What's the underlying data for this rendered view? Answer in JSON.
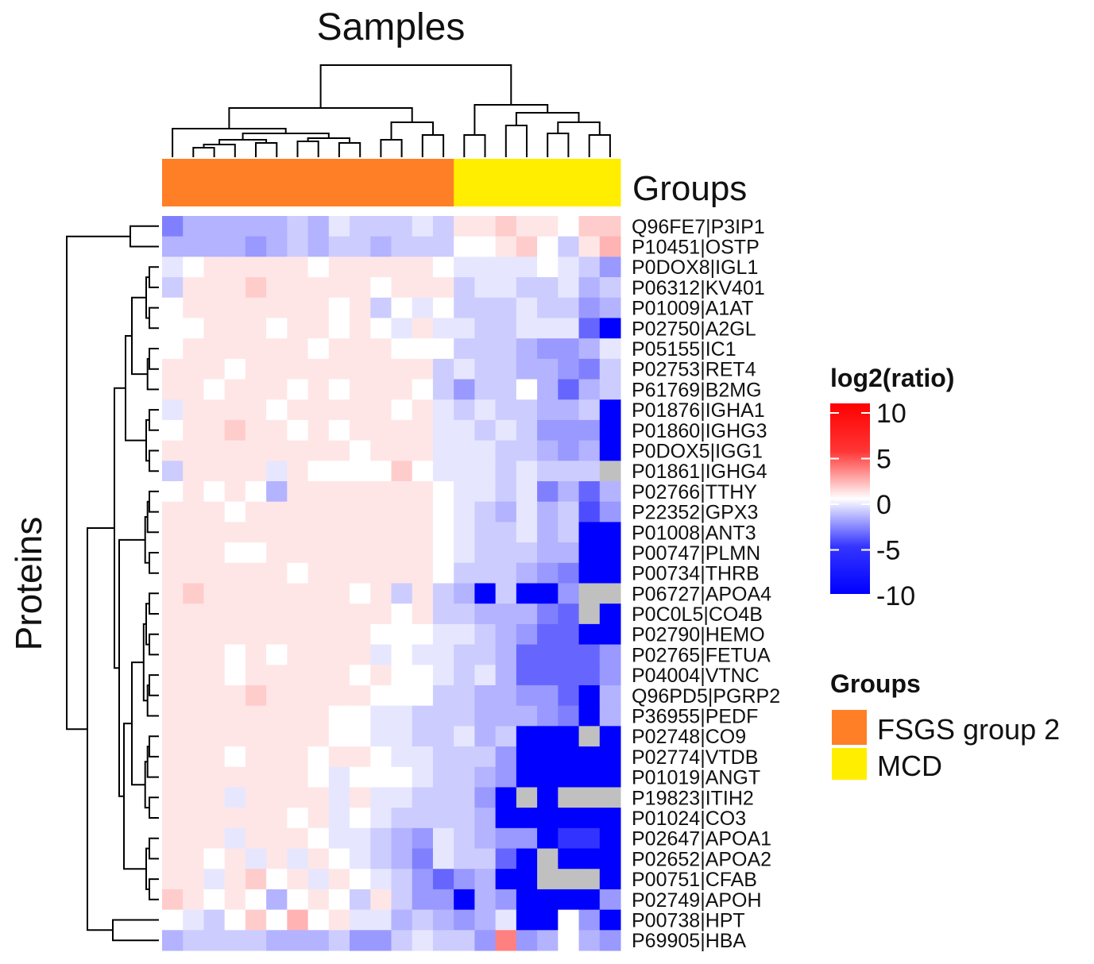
{
  "chart_data": {
    "type": "heatmap",
    "title": "Samples",
    "xlabel": "Samples",
    "ylabel": "Proteins",
    "annotation_label": "Groups",
    "rows": [
      "Q96FE7|P3IP1",
      "P10451|OSTP",
      "P0DOX8|IGL1",
      "P06312|KV401",
      "P01009|A1AT",
      "P02750|A2GL",
      "P05155|IC1",
      "P02753|RET4",
      "P61769|B2MG",
      "P01876|IGHA1",
      "P01860|IGHG3",
      "P0DOX5|IGG1",
      "P01861|IGHG4",
      "P02766|TTHY",
      "P22352|GPX3",
      "P01008|ANT3",
      "P00747|PLMN",
      "P00734|THRB",
      "P06727|APOA4",
      "P0C0L5|CO4B",
      "P02790|HEMO",
      "P02765|FETUA",
      "P04004|VTNC",
      "Q96PD5|PGRP2",
      "P36955|PEDF",
      "P02748|CO9",
      "P02774|VTDB",
      "P01019|ANGT",
      "P19823|ITIH2",
      "P01024|CO3",
      "P02647|APOA1",
      "P02652|APOA2",
      "P00751|CFAB",
      "P02749|APOH",
      "P00738|HPT",
      "P69905|HBA"
    ],
    "sample_groups": [
      "FSGS group 2",
      "FSGS group 2",
      "FSGS group 2",
      "FSGS group 2",
      "FSGS group 2",
      "FSGS group 2",
      "FSGS group 2",
      "FSGS group 2",
      "FSGS group 2",
      "FSGS group 2",
      "FSGS group 2",
      "FSGS group 2",
      "FSGS group 2",
      "FSGS group 2",
      "MCD",
      "MCD",
      "MCD",
      "MCD",
      "MCD",
      "MCD",
      "MCD",
      "MCD"
    ],
    "values": [
      [
        -5,
        -3,
        -3,
        -3,
        -3,
        -3,
        -2,
        -3,
        -1,
        -2,
        -2,
        -2,
        -1,
        -2,
        1,
        1,
        2,
        1,
        1,
        0,
        2,
        2
      ],
      [
        -3,
        -3,
        -3,
        -3,
        -4,
        -3,
        -2,
        -3,
        -2,
        -2,
        -3,
        -2,
        -2,
        -2,
        0,
        0,
        1,
        2,
        0,
        -2,
        1,
        3
      ],
      [
        -1,
        0,
        1,
        1,
        1,
        1,
        1,
        0,
        1,
        1,
        1,
        1,
        1,
        0,
        -1,
        -1,
        -1,
        -1,
        0,
        -1,
        -2,
        -4
      ],
      [
        -2,
        1,
        1,
        1,
        2,
        1,
        1,
        1,
        1,
        1,
        0,
        1,
        1,
        1,
        -2,
        -1,
        -1,
        -2,
        -2,
        -1,
        -3,
        -2
      ],
      [
        0,
        1,
        1,
        1,
        1,
        1,
        1,
        1,
        0,
        1,
        -2,
        0,
        -1,
        0,
        -2,
        -2,
        -2,
        -1,
        -2,
        -2,
        -4,
        -3
      ],
      [
        0,
        0,
        1,
        1,
        1,
        0,
        1,
        1,
        0,
        1,
        0,
        -1,
        1,
        -1,
        -1,
        -2,
        -2,
        -1,
        -1,
        -1,
        -6,
        -10
      ],
      [
        0,
        1,
        1,
        1,
        1,
        1,
        1,
        0,
        1,
        1,
        1,
        0,
        0,
        0,
        -2,
        -2,
        -2,
        -3,
        -4,
        -4,
        -3,
        -1
      ],
      [
        1,
        1,
        1,
        0,
        1,
        1,
        1,
        1,
        1,
        1,
        1,
        1,
        1,
        -2,
        -1,
        -2,
        -2,
        -3,
        -3,
        -4,
        -5,
        -2
      ],
      [
        1,
        1,
        0,
        1,
        1,
        1,
        0,
        1,
        0,
        1,
        1,
        1,
        0,
        -2,
        -4,
        -2,
        -2,
        0,
        -3,
        -6,
        -3,
        -2
      ],
      [
        -1,
        1,
        1,
        1,
        1,
        0,
        1,
        1,
        1,
        1,
        1,
        0,
        1,
        -1,
        -2,
        -1,
        -2,
        -2,
        -3,
        -3,
        -2,
        -10
      ],
      [
        0,
        1,
        1,
        2,
        1,
        1,
        0,
        1,
        0,
        1,
        1,
        1,
        1,
        -1,
        -1,
        -2,
        -1,
        -2,
        -4,
        -4,
        -4,
        -10
      ],
      [
        1,
        1,
        1,
        1,
        1,
        1,
        1,
        1,
        1,
        0,
        1,
        1,
        1,
        -1,
        -1,
        -1,
        -2,
        -2,
        -3,
        -4,
        -3,
        -10
      ],
      [
        -2,
        1,
        1,
        1,
        1,
        -1,
        1,
        0,
        0,
        0,
        0,
        2,
        0,
        -1,
        -1,
        -1,
        -2,
        -1,
        -2,
        -2,
        -2,
        "NA"
      ],
      [
        0,
        1,
        0,
        1,
        0,
        -3,
        1,
        1,
        1,
        1,
        1,
        1,
        1,
        0,
        -1,
        -1,
        -2,
        -1,
        -5,
        -3,
        -6,
        -3
      ],
      [
        1,
        1,
        1,
        0,
        1,
        1,
        1,
        1,
        1,
        1,
        1,
        1,
        1,
        0,
        -1,
        -2,
        -3,
        -1,
        -3,
        -2,
        -7,
        -4
      ],
      [
        1,
        1,
        1,
        1,
        1,
        1,
        1,
        1,
        1,
        1,
        1,
        1,
        1,
        0,
        -1,
        -2,
        -2,
        -1,
        -3,
        -2,
        -10,
        -10
      ],
      [
        1,
        1,
        1,
        0,
        0,
        1,
        1,
        1,
        1,
        1,
        1,
        1,
        1,
        0,
        -1,
        -2,
        -2,
        -2,
        -3,
        -3,
        -10,
        -10
      ],
      [
        1,
        1,
        1,
        1,
        1,
        1,
        0,
        1,
        1,
        1,
        1,
        1,
        1,
        0,
        -2,
        -2,
        -2,
        -3,
        -4,
        -5,
        -10,
        -10
      ],
      [
        1,
        2,
        1,
        1,
        1,
        1,
        1,
        1,
        1,
        0,
        1,
        -2,
        1,
        -2,
        -3,
        -10,
        -2,
        -10,
        -10,
        -4,
        "NA",
        "NA"
      ],
      [
        1,
        1,
        1,
        1,
        1,
        1,
        1,
        1,
        1,
        1,
        1,
        0,
        1,
        -2,
        -2,
        -3,
        -3,
        -3,
        -5,
        -6,
        "NA",
        -10
      ],
      [
        1,
        1,
        1,
        1,
        1,
        1,
        1,
        1,
        1,
        1,
        0,
        0,
        0,
        -1,
        -1,
        -2,
        -3,
        -4,
        -6,
        -6,
        -10,
        -10
      ],
      [
        1,
        1,
        1,
        0,
        1,
        0,
        1,
        1,
        1,
        1,
        -1,
        0,
        -1,
        -1,
        -2,
        -2,
        -3,
        -6,
        -6,
        -6,
        -6,
        -4
      ],
      [
        1,
        1,
        1,
        0,
        1,
        1,
        1,
        1,
        1,
        0,
        1,
        0,
        0,
        -1,
        -2,
        -1,
        -3,
        -6,
        -6,
        -6,
        -6,
        -4
      ],
      [
        1,
        1,
        1,
        1,
        2,
        1,
        1,
        1,
        1,
        1,
        0,
        0,
        0,
        -2,
        -2,
        -3,
        -3,
        -4,
        -4,
        -6,
        -10,
        -3
      ],
      [
        1,
        1,
        1,
        1,
        1,
        1,
        1,
        1,
        0,
        0,
        -1,
        -1,
        -2,
        -2,
        -2,
        -3,
        -3,
        -3,
        -4,
        -5,
        -10,
        -3
      ],
      [
        1,
        1,
        1,
        1,
        1,
        1,
        1,
        1,
        0,
        0,
        -1,
        -1,
        -2,
        -2,
        -1,
        -3,
        -2,
        -10,
        -10,
        -10,
        "NA",
        -10
      ],
      [
        1,
        1,
        1,
        0,
        1,
        1,
        1,
        0,
        1,
        1,
        0,
        -1,
        -1,
        -2,
        -2,
        -2,
        -4,
        -10,
        -10,
        -10,
        -10,
        -10
      ],
      [
        1,
        1,
        1,
        1,
        1,
        1,
        1,
        0,
        -1,
        0,
        0,
        0,
        -1,
        -2,
        -2,
        -3,
        -4,
        -10,
        -10,
        -10,
        -10,
        -10
      ],
      [
        1,
        1,
        1,
        -1,
        1,
        1,
        1,
        1,
        -1,
        1,
        -1,
        -1,
        -2,
        -2,
        -2,
        -4,
        -10,
        "NA",
        -10,
        "NA",
        "NA",
        "NA"
      ],
      [
        1,
        1,
        1,
        1,
        1,
        1,
        0,
        1,
        -1,
        0,
        -1,
        -2,
        -2,
        -2,
        -2,
        -3,
        -10,
        -10,
        -10,
        -10,
        -10,
        -10
      ],
      [
        1,
        1,
        1,
        -1,
        1,
        1,
        1,
        0,
        -1,
        -1,
        -2,
        -3,
        -4,
        -1,
        -2,
        -3,
        -4,
        -4,
        -10,
        -8,
        -8,
        -10
      ],
      [
        1,
        1,
        0,
        1,
        -1,
        1,
        -1,
        1,
        0,
        -1,
        -2,
        -3,
        -5,
        -1,
        -2,
        -2,
        -6,
        -10,
        "NA",
        -10,
        -10,
        -10
      ],
      [
        1,
        1,
        -1,
        1,
        2,
        0,
        1,
        -1,
        1,
        0,
        -1,
        -2,
        -4,
        -6,
        -4,
        -3,
        -10,
        -10,
        "NA",
        "NA",
        "NA",
        -10
      ],
      [
        2,
        1,
        0,
        1,
        0,
        -3,
        0,
        1,
        0,
        -2,
        1,
        -2,
        -4,
        -4,
        -10,
        -3,
        -4,
        -10,
        -10,
        -10,
        -10,
        -4
      ],
      [
        0,
        -1,
        -2,
        0,
        2,
        0,
        3,
        0,
        1,
        -1,
        -1,
        -3,
        -2,
        -3,
        -4,
        -3,
        -1,
        -10,
        -10,
        0,
        -4,
        -10
      ],
      [
        -3,
        -2,
        -2,
        -2,
        -2,
        -3,
        -3,
        -3,
        -2,
        -4,
        -4,
        -2,
        -1,
        -2,
        -2,
        -4,
        5,
        -4,
        -3,
        0,
        -3,
        -4
      ]
    ],
    "legend": {
      "title": "log2(ratio)",
      "ticks": [
        "10",
        "5",
        "0",
        "-5",
        "-10"
      ],
      "range": [
        -10,
        10
      ],
      "colors": {
        "low": "#0000ff",
        "mid": "#ffffff",
        "high": "#ff0000",
        "na": "#c0c0c0"
      }
    },
    "groups_legend": {
      "title": "Groups",
      "items": [
        {
          "label": "FSGS group 2",
          "color": "#ff7f27"
        },
        {
          "label": "MCD",
          "color": "#ffee00"
        }
      ]
    }
  }
}
